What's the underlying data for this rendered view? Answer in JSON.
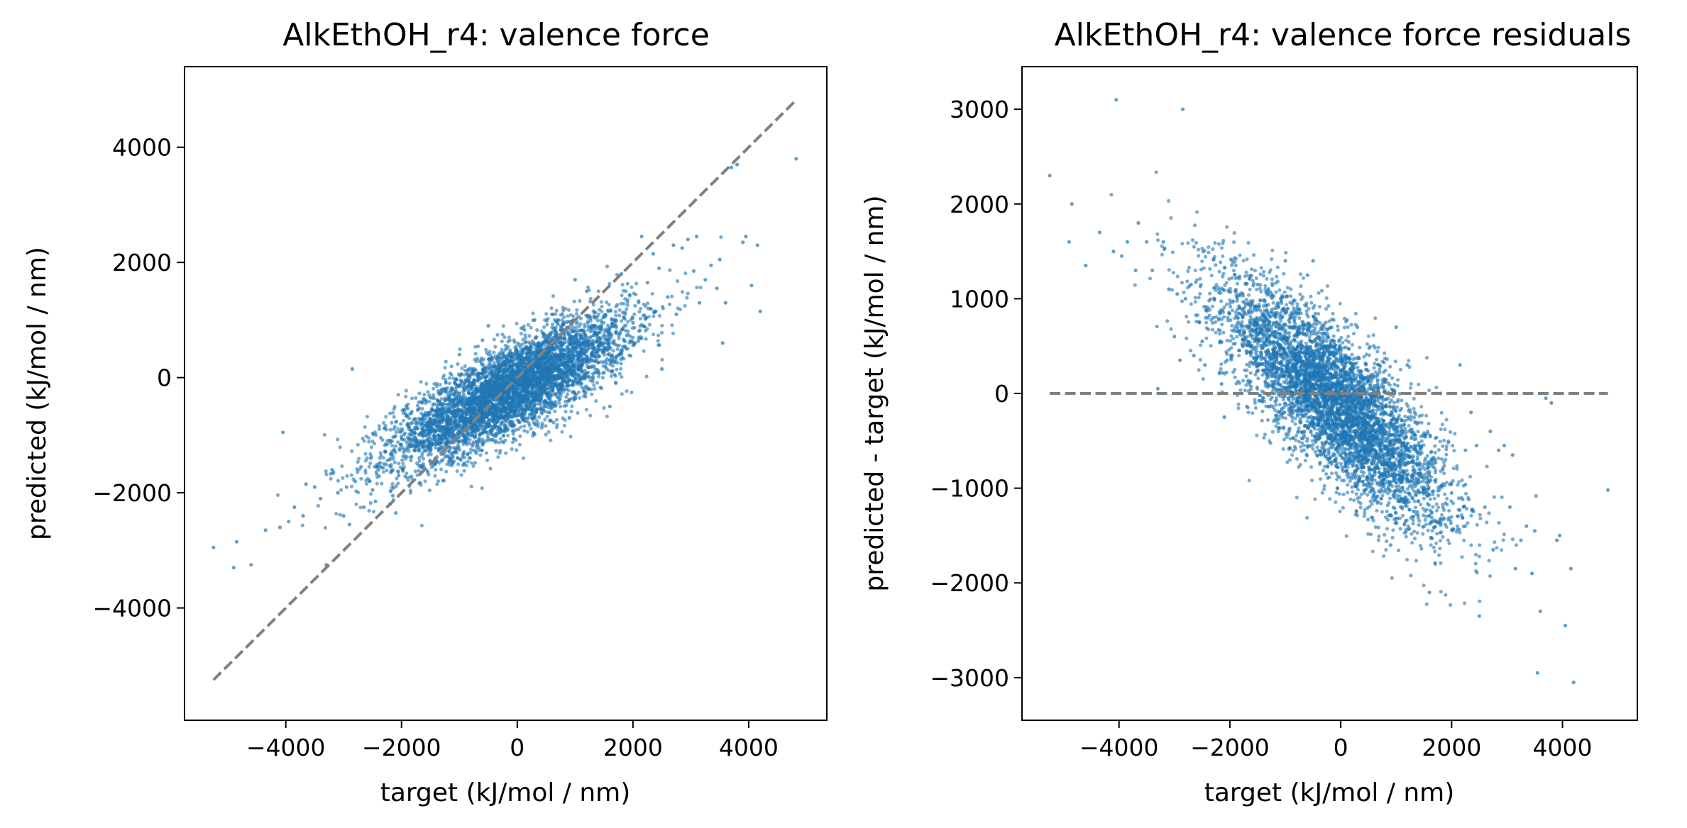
{
  "colors": {
    "scatter": "#1f77b4",
    "reference_line": "#808080",
    "axes": "#000000",
    "background": "#ffffff"
  },
  "chart_data": [
    {
      "type": "scatter",
      "title": "AlkEthOH_r4: valence force",
      "xlabel": "target (kJ/mol / nm)",
      "ylabel": "predicted (kJ/mol / nm)",
      "xlim": [
        -5750,
        5350
      ],
      "ylim": [
        -5950,
        5400
      ],
      "xticks": [
        -4000,
        -2000,
        0,
        2000,
        4000
      ],
      "xtick_labels": [
        "−4000",
        "−2000",
        "0",
        "2000",
        "4000"
      ],
      "yticks": [
        -4000,
        -2000,
        0,
        2000,
        4000
      ],
      "ytick_labels": [
        "−4000",
        "−2000",
        "0",
        "2000",
        "4000"
      ],
      "grid": false,
      "legend": "none",
      "reference_line": {
        "style": "dashed",
        "x": [
          -5250,
          4820
        ],
        "y": [
          -5250,
          4820
        ]
      },
      "cloud": {
        "n": 5200,
        "x_center": -100,
        "x_spread": 1000,
        "y_center": -150,
        "slope": 0.5,
        "y_noise": 380
      },
      "series": [
        {
          "x": [
            -5250,
            -4900,
            -4850,
            -4600,
            -4350,
            -4100,
            -4050,
            -3950,
            -3850,
            -3700,
            -3650,
            -3500,
            -3400,
            -3300,
            -3200,
            -3100,
            -3000,
            -2950,
            -2900,
            -2850,
            -2800,
            -2700,
            -2650,
            -2550,
            -2500,
            -2450,
            -2400,
            -2300,
            -2200,
            -2150,
            -2100,
            -2050,
            2150,
            2250,
            2350,
            2450,
            2500,
            2600,
            2700,
            2750,
            2850,
            2950,
            3050,
            3100,
            3150,
            3250,
            3350,
            3450,
            3500,
            3550,
            3600,
            3700,
            3800,
            3900,
            3950,
            4050,
            4150,
            4200,
            4820,
            -1500,
            -1200,
            -900,
            -600,
            -300,
            0,
            300,
            600,
            900,
            1200,
            1500,
            1800,
            2000,
            -1000,
            -500,
            500,
            1000,
            1600
          ],
          "y": [
            -2950,
            -3300,
            -2850,
            -3250,
            -2650,
            -2600,
            -950,
            -2500,
            -2250,
            -2400,
            -1850,
            -1900,
            -2100,
            -3250,
            -1600,
            -2000,
            -2400,
            -1900,
            -2550,
            150,
            -1800,
            -1550,
            -2250,
            -1800,
            -1950,
            -2150,
            -1600,
            -1500,
            -2200,
            -2050,
            -2350,
            -1700,
            2450,
            1650,
            2150,
            1900,
            150,
            1400,
            2300,
            1100,
            2250,
            2400,
            1850,
            2450,
            1300,
            1700,
            1950,
            1550,
            2050,
            600,
            1300,
            3650,
            3700,
            2350,
            2450,
            1600,
            2300,
            1150,
            3800,
            -350,
            -600,
            -1050,
            650,
            -100,
            -450,
            1000,
            350,
            -700,
            1500,
            600,
            1800,
            950,
            400,
            900,
            -200,
            1700,
            -500
          ]
        }
      ]
    },
    {
      "type": "scatter",
      "title": "AlkEthOH_r4: valence force residuals",
      "xlabel": "target (kJ/mol / nm)",
      "ylabel": "predicted - target (kJ/mol / nm)",
      "xlim": [
        -5750,
        5350
      ],
      "ylim": [
        -3450,
        3450
      ],
      "xticks": [
        -4000,
        -2000,
        0,
        2000,
        4000
      ],
      "xtick_labels": [
        "−4000",
        "−2000",
        "0",
        "2000",
        "4000"
      ],
      "yticks": [
        -3000,
        -2000,
        -1000,
        0,
        1000,
        2000,
        3000
      ],
      "ytick_labels": [
        "−3000",
        "−2000",
        "−1000",
        "0",
        "1000",
        "2000",
        "3000"
      ],
      "grid": false,
      "legend": "none",
      "reference_line": {
        "style": "dashed",
        "x": [
          -5250,
          4820
        ],
        "y": [
          0,
          0
        ]
      },
      "cloud": {
        "n": 5200,
        "x_center": -100,
        "x_spread": 1000,
        "y_center": -150,
        "slope": -0.5,
        "y_noise": 380
      },
      "series": [
        {
          "x": [
            -5250,
            -4900,
            -4850,
            -4600,
            -4350,
            -4100,
            -4050,
            -3950,
            -3850,
            -3700,
            -3650,
            -3500,
            -3400,
            -3300,
            -3200,
            -3100,
            -3000,
            -2950,
            -2900,
            -2850,
            -2800,
            -2700,
            -2650,
            -2550,
            -2500,
            -2450,
            -2400,
            -2300,
            -2200,
            -2150,
            -2100,
            -2050,
            2150,
            2250,
            2350,
            2450,
            2500,
            2600,
            2700,
            2750,
            2850,
            2950,
            3050,
            3100,
            3150,
            3250,
            3350,
            3450,
            3500,
            3550,
            3600,
            3700,
            3800,
            3900,
            3950,
            4050,
            4150,
            4200,
            4820,
            -1500,
            -1200,
            -900,
            -600,
            -300,
            0,
            300,
            600,
            900,
            1200,
            1500,
            1800,
            2000,
            -1000,
            -500,
            500,
            1000,
            1600
          ],
          "y": [
            2300,
            1600,
            2000,
            1350,
            1700,
            1500,
            3100,
            1450,
            1600,
            1300,
            1800,
            1600,
            1300,
            50,
            1600,
            1100,
            600,
            1050,
            350,
            3000,
            1000,
            1150,
            400,
            750,
            550,
            300,
            800,
            800,
            0,
            100,
            -250,
            350,
            300,
            -600,
            -200,
            -550,
            -2350,
            -1200,
            -400,
            -1650,
            -600,
            -550,
            -1200,
            -650,
            -1850,
            -1550,
            -1400,
            -1900,
            -1450,
            -2950,
            -2300,
            -50,
            -100,
            -1550,
            -1500,
            -2450,
            -1850,
            -3050,
            -1020,
            1150,
            600,
            -150,
            1250,
            200,
            -450,
            700,
            -250,
            -1600,
            300,
            -900,
            0,
            -1050,
            1400,
            1400,
            -700,
            700,
            -2100
          ]
        }
      ]
    }
  ]
}
